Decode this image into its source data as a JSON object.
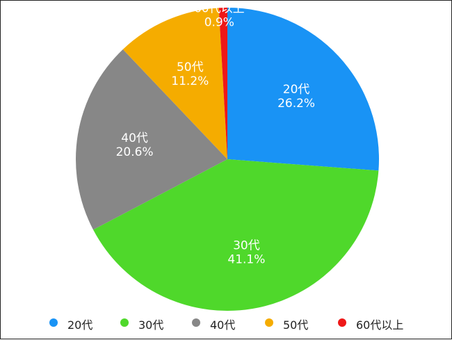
{
  "chart_data": {
    "type": "pie",
    "title": "",
    "categories": [
      "20代",
      "30代",
      "40代",
      "50代",
      "60代以上"
    ],
    "values": [
      26.2,
      41.1,
      20.6,
      11.2,
      0.9
    ],
    "value_labels": [
      "26.2%",
      "41.1%",
      "20.6%",
      "11.2%",
      "0.9%"
    ],
    "colors": [
      "#1993f5",
      "#4fd82b",
      "#878787",
      "#f5ac00",
      "#ee1818"
    ],
    "start_angle": "12 o'clock",
    "direction": "clockwise",
    "legend_position": "bottom"
  }
}
